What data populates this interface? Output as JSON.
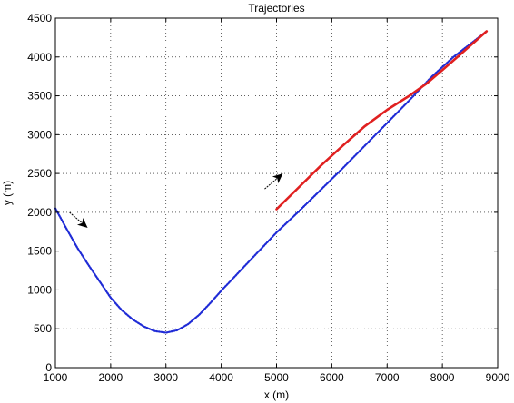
{
  "chart_data": {
    "type": "line",
    "title": "Trajectories",
    "xlabel": "x (m)",
    "ylabel": "y (m)",
    "xlim": [
      1000,
      9000
    ],
    "ylim": [
      0,
      4500
    ],
    "xticks": [
      1000,
      2000,
      3000,
      4000,
      5000,
      6000,
      7000,
      8000,
      9000
    ],
    "yticks": [
      0,
      500,
      1000,
      1500,
      2000,
      2500,
      3000,
      3500,
      4000,
      4500
    ],
    "grid": true,
    "series": [
      {
        "color": "#1f2bd6",
        "style": "dotted",
        "x": [
          1000,
          1200,
          1400,
          1600,
          1800,
          2000,
          2200,
          2400,
          2600,
          2800,
          3000,
          3200,
          3400,
          3600,
          3800,
          4000,
          4200,
          4400,
          4600,
          4800,
          5000,
          5400,
          5800,
          6200,
          6600,
          7000,
          7400,
          7800,
          8200,
          8600,
          8800
        ],
        "y": [
          2050,
          1790,
          1540,
          1320,
          1110,
          900,
          740,
          620,
          530,
          470,
          450,
          480,
          560,
          680,
          830,
          990,
          1140,
          1290,
          1440,
          1590,
          1740,
          2010,
          2290,
          2570,
          2860,
          3150,
          3440,
          3740,
          4000,
          4220,
          4330
        ]
      },
      {
        "color": "#e02020",
        "style": "solid",
        "x": [
          5000,
          5400,
          5800,
          6200,
          6600,
          7000,
          7400,
          7700,
          8000,
          8400,
          8800
        ],
        "y": [
          2040,
          2320,
          2600,
          2860,
          3110,
          3320,
          3500,
          3650,
          3830,
          4080,
          4330
        ]
      }
    ],
    "arrows": [
      {
        "x": 1420,
        "y": 1900,
        "direction": "down-right",
        "color": "#000000"
      },
      {
        "x": 4950,
        "y": 2400,
        "direction": "up-right",
        "color": "#000000"
      }
    ]
  }
}
